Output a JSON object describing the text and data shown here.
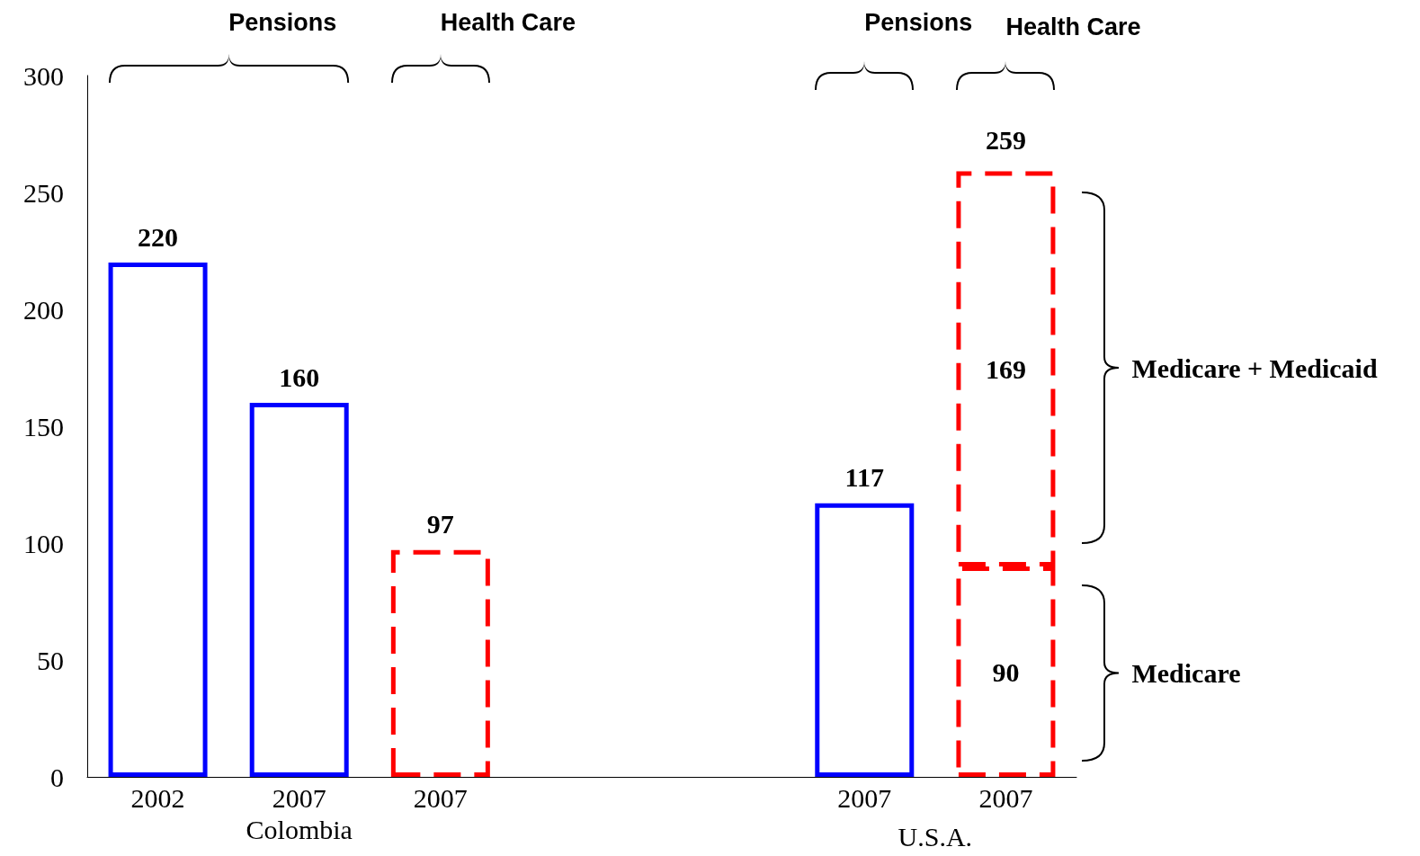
{
  "chart_data": {
    "type": "bar",
    "categories": [
      "2002",
      "2007",
      "2007",
      null,
      null,
      "2007",
      "2007"
    ],
    "series": [
      {
        "color": "#0000ff",
        "line_style": "solid",
        "values": [
          220,
          160,
          null,
          null,
          null,
          117,
          null
        ]
      },
      {
        "color": "#ff0000",
        "line_style": "dashed",
        "values": [
          null,
          null,
          97,
          null,
          null,
          null,
          90
        ]
      },
      {
        "color": "#ff0000",
        "line_style": "dashed",
        "values": [
          null,
          null,
          null,
          null,
          null,
          null,
          169
        ]
      }
    ],
    "stacked": true,
    "data_labels": true,
    "totals": [
      null,
      null,
      null,
      null,
      null,
      null,
      "259"
    ],
    "ylim": [
      0,
      300
    ],
    "yticks": [
      0,
      50,
      100,
      150,
      200,
      250,
      300
    ],
    "grid": false,
    "annotations": [
      "Pensions",
      "Health Care",
      "Pensions",
      "Health Care",
      "Medicare + Medicaid",
      "Medicare",
      "Colombia",
      "U.S.A."
    ]
  }
}
